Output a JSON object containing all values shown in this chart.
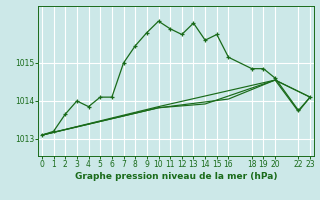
{
  "title": "Graphe pression niveau de la mer (hPa)",
  "bg_color": "#cce8e8",
  "grid_color": "#ffffff",
  "line_color": "#1a6b1a",
  "ylabel_ticks": [
    1013,
    1014,
    1015
  ],
  "xlim": [
    -0.3,
    23.3
  ],
  "ylim": [
    1012.55,
    1016.5
  ],
  "xticks": [
    0,
    1,
    2,
    3,
    4,
    5,
    6,
    7,
    8,
    9,
    10,
    11,
    12,
    13,
    14,
    15,
    16,
    18,
    19,
    20,
    22,
    23
  ],
  "line1_x": [
    0,
    1,
    2,
    3,
    4,
    5,
    6,
    7,
    8,
    9,
    10,
    11,
    12,
    13,
    14,
    15,
    16,
    18,
    19,
    20,
    22,
    23
  ],
  "line1_y": [
    1013.1,
    1013.2,
    1013.65,
    1014.0,
    1013.85,
    1014.1,
    1014.1,
    1015.0,
    1015.45,
    1015.8,
    1016.1,
    1015.9,
    1015.75,
    1016.05,
    1015.6,
    1015.75,
    1015.15,
    1014.85,
    1014.85,
    1014.6,
    1013.75,
    1014.1
  ],
  "line2_x": [
    0,
    10,
    20,
    23
  ],
  "line2_y": [
    1013.1,
    1013.85,
    1014.55,
    1014.1
  ],
  "line3_x": [
    0,
    10,
    16,
    20,
    22,
    23
  ],
  "line3_y": [
    1013.1,
    1013.82,
    1014.05,
    1014.55,
    1013.72,
    1014.1
  ],
  "line4_x": [
    0,
    10,
    14,
    20,
    23
  ],
  "line4_y": [
    1013.1,
    1013.82,
    1013.92,
    1014.55,
    1014.1
  ],
  "tick_fontsize": 5.5,
  "label_fontsize": 6.5
}
